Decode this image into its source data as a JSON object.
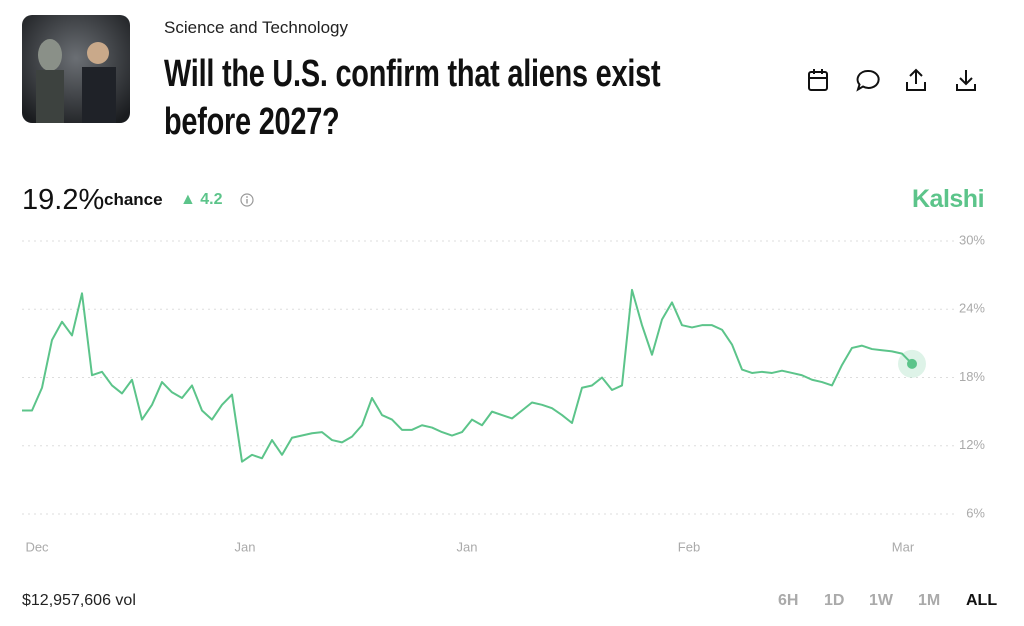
{
  "header": {
    "category": "Science and Technology",
    "title": "Will the U.S. confirm that aliens exist before 2027?"
  },
  "headline": {
    "value": "19.2%",
    "label": "chance",
    "change": "4.2"
  },
  "brand": "Kalshi",
  "footer": {
    "volume": "$12,957,606 vol",
    "ranges": [
      "6H",
      "1D",
      "1W",
      "1M",
      "ALL"
    ]
  },
  "chart_data": {
    "type": "line",
    "color": "#5cc48a",
    "grid": true,
    "series": [
      {
        "values": [
          15.1,
          15.1,
          17.1,
          21.3,
          22.9,
          21.7,
          25.4,
          18.2,
          18.5,
          17.3,
          16.6,
          17.8,
          14.3,
          15.6,
          17.6,
          16.7,
          16.2,
          17.3,
          15.1,
          14.3,
          15.6,
          16.5,
          10.6,
          11.2,
          10.9,
          12.5,
          11.2,
          12.7,
          12.9,
          13.1,
          13.2,
          12.5,
          12.3,
          12.8,
          13.8,
          16.2,
          14.7,
          14.3,
          13.4,
          13.4,
          13.8,
          13.6,
          13.2,
          12.9,
          13.2,
          14.3,
          13.8,
          15.0,
          14.7,
          14.4,
          15.1,
          15.8,
          15.6,
          15.3,
          14.7,
          14.0,
          17.1,
          17.3,
          18.0,
          16.9,
          17.3,
          25.7,
          22.6,
          20.0,
          23.1,
          24.6,
          22.6,
          22.4,
          22.6,
          22.6,
          22.2,
          20.9,
          18.7,
          18.4,
          18.5,
          18.4,
          18.6,
          18.4,
          18.2,
          17.8,
          17.6,
          17.3,
          19.1,
          20.6,
          20.8,
          20.5,
          20.4,
          20.3,
          20.1,
          19.2
        ]
      }
    ],
    "xlim": [
      0,
      89
    ],
    "xticks": [
      {
        "value": 1.5,
        "label": "Dec"
      },
      {
        "value": 22.3,
        "label": "Jan"
      },
      {
        "value": 44.5,
        "label": "Jan"
      },
      {
        "value": 66.7,
        "label": "Feb"
      },
      {
        "value": 88.1,
        "label": "Mar"
      }
    ],
    "ylim": [
      6,
      30
    ],
    "yticks": [
      {
        "value": 6,
        "label": "6%"
      },
      {
        "value": 12,
        "label": "12%"
      },
      {
        "value": 18,
        "label": "18%"
      },
      {
        "value": 24,
        "label": "24%"
      },
      {
        "value": 30,
        "label": "30%"
      }
    ]
  }
}
